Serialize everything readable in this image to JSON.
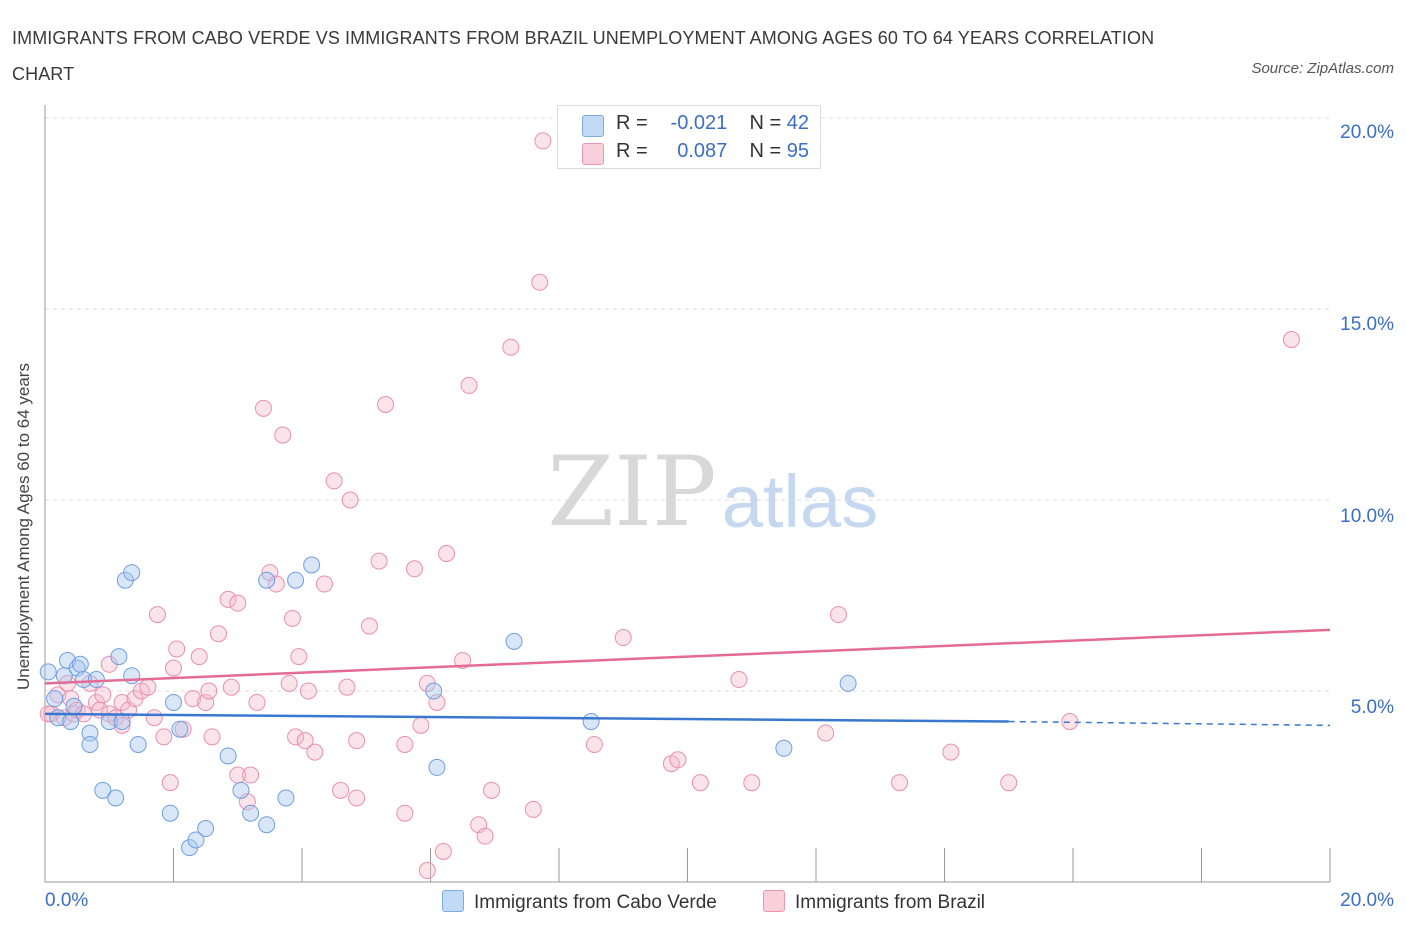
{
  "title": "IMMIGRANTS FROM CABO VERDE VS IMMIGRANTS FROM BRAZIL UNEMPLOYMENT AMONG AGES 60 TO 64 YEARS CORRELATION CHART",
  "source": "Source: ZipAtlas.com",
  "watermark": {
    "zip": "ZIP",
    "atlas": "atlas"
  },
  "legend_top": {
    "rows": [
      {
        "r_label": "R =",
        "r_value": "-0.021",
        "n_label": "N =",
        "n_value": "42",
        "color": "#a8c8f0"
      },
      {
        "r_label": "R =",
        "r_value": "0.087",
        "n_label": "N =",
        "n_value": "95",
        "color": "#f5b8cb"
      }
    ]
  },
  "legend_bottom": [
    {
      "label": "Immigrants from Cabo Verde",
      "color": "#a8c8f0"
    },
    {
      "label": "Immigrants from Brazil",
      "color": "#f5b8cb"
    }
  ],
  "x_axis": {
    "min_label": "0.0%",
    "max_label": "20.0%"
  },
  "y_axis": {
    "label": "Unemployment Among Ages 60 to 64 years",
    "ticks": [
      "20.0%",
      "15.0%",
      "10.0%",
      "5.0%"
    ]
  },
  "colors": {
    "blue": "#3a78d0",
    "pink": "#e36b96",
    "blue_fill": "#a8c8f0",
    "pink_fill": "#f5b8cb",
    "tick_text": "#3a6fc6"
  },
  "chart_data": {
    "type": "scatter",
    "title": "IMMIGRANTS FROM CABO VERDE VS IMMIGRANTS FROM BRAZIL UNEMPLOYMENT AMONG AGES 60 TO 64 YEARS CORRELATION CHART",
    "xlabel": "",
    "ylabel": "Unemployment Among Ages 60 to 64 years",
    "xlim": [
      0,
      20
    ],
    "ylim": [
      0,
      20
    ],
    "y_ticks": [
      5,
      10,
      15,
      20
    ],
    "grid": true,
    "series": [
      {
        "name": "Immigrants from Cabo Verde",
        "color": "#3a78d0",
        "trend": {
          "x": [
            0,
            15
          ],
          "y": [
            4.4,
            4.2
          ],
          "dashed_to": [
            20,
            4.1
          ]
        },
        "points": [
          [
            0.05,
            5.5
          ],
          [
            0.2,
            4.3
          ],
          [
            0.3,
            5.4
          ],
          [
            0.35,
            5.8
          ],
          [
            0.4,
            4.2
          ],
          [
            0.45,
            4.6
          ],
          [
            0.5,
            5.6
          ],
          [
            0.55,
            5.7
          ],
          [
            0.6,
            5.3
          ],
          [
            0.7,
            3.9
          ],
          [
            0.7,
            3.6
          ],
          [
            0.8,
            5.3
          ],
          [
            0.9,
            2.4
          ],
          [
            1.0,
            4.2
          ],
          [
            1.1,
            2.2
          ],
          [
            1.15,
            5.9
          ],
          [
            1.2,
            4.2
          ],
          [
            1.25,
            7.9
          ],
          [
            1.35,
            8.1
          ],
          [
            1.35,
            5.4
          ],
          [
            1.45,
            3.6
          ],
          [
            1.95,
            1.8
          ],
          [
            2.0,
            4.7
          ],
          [
            2.1,
            4.0
          ],
          [
            2.25,
            0.9
          ],
          [
            2.35,
            1.1
          ],
          [
            2.5,
            1.4
          ],
          [
            2.85,
            3.3
          ],
          [
            3.05,
            2.4
          ],
          [
            3.2,
            1.8
          ],
          [
            3.45,
            1.5
          ],
          [
            3.45,
            7.9
          ],
          [
            3.75,
            2.2
          ],
          [
            3.9,
            7.9
          ],
          [
            4.15,
            8.3
          ],
          [
            6.05,
            5.0
          ],
          [
            6.1,
            3.0
          ],
          [
            7.3,
            6.3
          ],
          [
            8.5,
            4.2
          ],
          [
            11.5,
            3.5
          ],
          [
            12.5,
            5.2
          ],
          [
            0.15,
            4.8
          ]
        ]
      },
      {
        "name": "Immigrants from Brazil",
        "color": "#e36b96",
        "trend": {
          "x": [
            0,
            20
          ],
          "y": [
            5.2,
            6.6
          ]
        },
        "points": [
          [
            0.1,
            4.4
          ],
          [
            0.2,
            4.9
          ],
          [
            0.3,
            4.3
          ],
          [
            0.35,
            5.2
          ],
          [
            0.4,
            4.8
          ],
          [
            0.45,
            4.4
          ],
          [
            0.5,
            4.5
          ],
          [
            0.6,
            4.4
          ],
          [
            0.7,
            5.2
          ],
          [
            0.8,
            4.7
          ],
          [
            0.85,
            4.5
          ],
          [
            0.9,
            4.9
          ],
          [
            1.0,
            4.4
          ],
          [
            1.0,
            5.7
          ],
          [
            1.1,
            4.3
          ],
          [
            1.2,
            4.7
          ],
          [
            1.2,
            4.1
          ],
          [
            1.3,
            4.5
          ],
          [
            1.4,
            4.8
          ],
          [
            1.5,
            5.0
          ],
          [
            1.6,
            5.1
          ],
          [
            1.7,
            4.3
          ],
          [
            1.75,
            7.0
          ],
          [
            1.85,
            3.8
          ],
          [
            1.95,
            2.6
          ],
          [
            2.0,
            5.6
          ],
          [
            2.05,
            6.1
          ],
          [
            2.15,
            4.0
          ],
          [
            2.3,
            4.8
          ],
          [
            2.4,
            5.9
          ],
          [
            2.5,
            4.7
          ],
          [
            2.55,
            5.0
          ],
          [
            2.6,
            3.8
          ],
          [
            2.7,
            6.5
          ],
          [
            2.85,
            7.4
          ],
          [
            2.9,
            5.1
          ],
          [
            3.0,
            7.3
          ],
          [
            3.0,
            2.8
          ],
          [
            3.15,
            2.1
          ],
          [
            3.2,
            2.8
          ],
          [
            3.3,
            4.7
          ],
          [
            3.4,
            12.4
          ],
          [
            3.5,
            8.1
          ],
          [
            3.6,
            7.8
          ],
          [
            3.7,
            11.7
          ],
          [
            3.8,
            5.2
          ],
          [
            3.85,
            6.9
          ],
          [
            3.9,
            3.8
          ],
          [
            3.95,
            5.9
          ],
          [
            4.05,
            3.7
          ],
          [
            4.1,
            5.0
          ],
          [
            4.2,
            3.4
          ],
          [
            4.35,
            7.8
          ],
          [
            4.5,
            10.5
          ],
          [
            4.6,
            2.4
          ],
          [
            4.7,
            5.1
          ],
          [
            4.75,
            10.0
          ],
          [
            4.85,
            2.2
          ],
          [
            4.85,
            3.7
          ],
          [
            5.05,
            6.7
          ],
          [
            5.2,
            8.4
          ],
          [
            5.3,
            12.5
          ],
          [
            5.6,
            1.8
          ],
          [
            5.6,
            3.6
          ],
          [
            5.75,
            8.2
          ],
          [
            5.85,
            4.1
          ],
          [
            5.95,
            0.3
          ],
          [
            5.95,
            5.2
          ],
          [
            6.1,
            4.7
          ],
          [
            6.2,
            0.8
          ],
          [
            6.25,
            8.6
          ],
          [
            6.5,
            5.8
          ],
          [
            6.6,
            13.0
          ],
          [
            6.75,
            1.5
          ],
          [
            6.85,
            1.2
          ],
          [
            6.95,
            2.4
          ],
          [
            7.25,
            14.0
          ],
          [
            7.6,
            1.9
          ],
          [
            7.7,
            15.7
          ],
          [
            7.75,
            19.4
          ],
          [
            8.55,
            3.6
          ],
          [
            9.0,
            6.4
          ],
          [
            9.75,
            3.1
          ],
          [
            9.85,
            3.2
          ],
          [
            10.2,
            2.6
          ],
          [
            10.8,
            5.3
          ],
          [
            11.0,
            2.6
          ],
          [
            12.15,
            3.9
          ],
          [
            12.35,
            7.0
          ],
          [
            13.3,
            2.6
          ],
          [
            14.1,
            3.4
          ],
          [
            15.0,
            2.6
          ],
          [
            15.95,
            4.2
          ],
          [
            19.4,
            14.2
          ],
          [
            0.05,
            4.4
          ]
        ]
      }
    ]
  }
}
